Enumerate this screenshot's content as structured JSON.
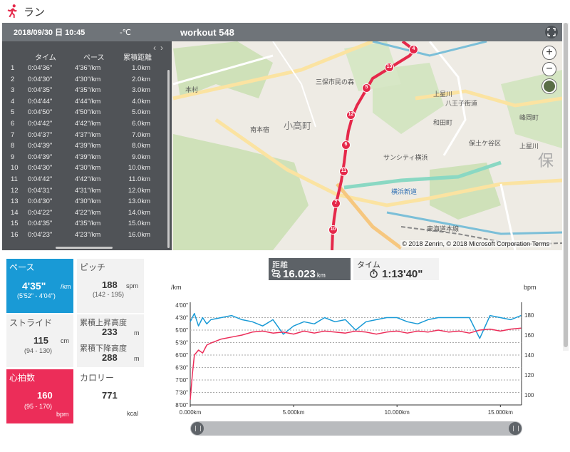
{
  "app": {
    "title": "ラン",
    "icon": "runner-icon"
  },
  "header": {
    "date": "2018/09/30 日 10:45",
    "temperature": "-℃",
    "workout_title": "workout 548",
    "expand_icon": "expand-icon"
  },
  "laps": {
    "columns": [
      "タイム",
      "ペース",
      "累積距離"
    ],
    "rows": [
      {
        "no": "1",
        "time": "0:04'36\"",
        "pace": "4'36\"/km",
        "dist": "1.0km"
      },
      {
        "no": "2",
        "time": "0:04'30\"",
        "pace": "4'30\"/km",
        "dist": "2.0km"
      },
      {
        "no": "3",
        "time": "0:04'35\"",
        "pace": "4'35\"/km",
        "dist": "3.0km"
      },
      {
        "no": "4",
        "time": "0:04'44\"",
        "pace": "4'44\"/km",
        "dist": "4.0km"
      },
      {
        "no": "5",
        "time": "0:04'50\"",
        "pace": "4'50\"/km",
        "dist": "5.0km"
      },
      {
        "no": "6",
        "time": "0:04'42\"",
        "pace": "4'42\"/km",
        "dist": "6.0km"
      },
      {
        "no": "7",
        "time": "0:04'37\"",
        "pace": "4'37\"/km",
        "dist": "7.0km"
      },
      {
        "no": "8",
        "time": "0:04'39\"",
        "pace": "4'39\"/km",
        "dist": "8.0km"
      },
      {
        "no": "9",
        "time": "0:04'39\"",
        "pace": "4'39\"/km",
        "dist": "9.0km"
      },
      {
        "no": "10",
        "time": "0:04'30\"",
        "pace": "4'30\"/km",
        "dist": "10.0km"
      },
      {
        "no": "11",
        "time": "0:04'42\"",
        "pace": "4'42\"/km",
        "dist": "11.0km"
      },
      {
        "no": "12",
        "time": "0:04'31\"",
        "pace": "4'31\"/km",
        "dist": "12.0km"
      },
      {
        "no": "13",
        "time": "0:04'30\"",
        "pace": "4'30\"/km",
        "dist": "13.0km"
      },
      {
        "no": "14",
        "time": "0:04'22\"",
        "pace": "4'22\"/km",
        "dist": "14.0km"
      },
      {
        "no": "15",
        "time": "0:04'35\"",
        "pace": "4'35\"/km",
        "dist": "15.0km"
      },
      {
        "no": "16",
        "time": "0:04'23\"",
        "pace": "4'23\"/km",
        "dist": "16.0km"
      }
    ]
  },
  "map": {
    "zoom_in": "+",
    "zoom_out": "−",
    "copyright": "© 2018 Zenrin, © 2018 Microsoft Corporation Terms",
    "labels": {
      "town1": "小高町",
      "town2": "上星川",
      "town3": "和田町",
      "town4": "峰岡町",
      "kamihoshikawa": "上星川",
      "hodogaya": "保",
      "hodogaya_ku": "保土ケ谷区",
      "minamihoncho": "南本宿",
      "honmura": "本村",
      "hachioji": "八王子街道",
      "yokohama_shindo": "横浜新道",
      "tokaido": "東海道本線",
      "sanshi": "サンシティ横浜",
      "michi": "三保市民の森"
    },
    "markers": [
      "4",
      "13",
      "5",
      "12",
      "6",
      "11",
      "7",
      "10"
    ]
  },
  "stats": {
    "pace": {
      "label": "ペース",
      "value": "4'35\"",
      "unit": "/km",
      "range": "(5'52\" - 4'04\")"
    },
    "pitch": {
      "label": "ピッチ",
      "value": "188",
      "unit": "spm",
      "range": "(142 - 195)"
    },
    "stride": {
      "label": "ストライド",
      "value": "115",
      "unit": "cm",
      "range": "(94 - 130)"
    },
    "ascent": {
      "label": "累積上昇高度",
      "value": "233",
      "unit": "m"
    },
    "descent": {
      "label": "累積下降高度",
      "value": "288",
      "unit": "m"
    },
    "heart": {
      "label": "心拍数",
      "value": "160",
      "unit": "bpm",
      "range": "(95 - 170)"
    },
    "calorie": {
      "label": "カロリー",
      "value": "771",
      "unit": "kcal"
    }
  },
  "summary": {
    "distance": {
      "label": "距離",
      "value": "16.023",
      "unit": "km",
      "icon": "route-icon"
    },
    "time": {
      "label": "タイム",
      "value": "1:13'40\"",
      "icon": "stopwatch-icon"
    }
  },
  "colors": {
    "pace": "#199ad6",
    "heart": "#ec2d59",
    "route": "#e5284a"
  },
  "chart_data": {
    "type": "line",
    "ylabel_left": "/km",
    "ylabel_right": "bpm",
    "xlim": [
      0,
      16.023
    ],
    "x_ticks": [
      "0.000km",
      "5.000km",
      "10.000km",
      "15.000km"
    ],
    "x_tick_values": [
      0,
      5,
      10,
      15
    ],
    "left_ticks": [
      "4'00\"",
      "4'30\"",
      "5'00\"",
      "5'30\"",
      "6'00\"",
      "6'30\"",
      "7'00\"",
      "7'30\"",
      "8'00\""
    ],
    "right_ticks": [
      "180",
      "160",
      "140",
      "120",
      "100"
    ],
    "left_ylim": [
      "4'00\"",
      "8'00\""
    ],
    "right_ylim": [
      90,
      190
    ],
    "grid": true,
    "series": [
      {
        "type": "pace",
        "color": "#199ad6",
        "x": [
          0,
          0.2,
          0.4,
          0.6,
          0.8,
          1.0,
          1.5,
          2.0,
          2.5,
          3.0,
          3.5,
          4.0,
          4.5,
          5.0,
          5.5,
          6.0,
          6.5,
          7.0,
          7.5,
          8.0,
          8.5,
          9.0,
          9.5,
          10.0,
          10.5,
          11.0,
          11.5,
          12.0,
          12.5,
          13.0,
          13.5,
          14.0,
          14.5,
          15.0,
          15.5,
          16.0
        ],
        "y": [
          "4'40\"",
          "4'20\"",
          "4'50\"",
          "4'30\"",
          "4'45\"",
          "4'35\"",
          "4'30\"",
          "4'25\"",
          "4'35\"",
          "4'40\"",
          "4'50\"",
          "4'35\"",
          "5'10\"",
          "4'50\"",
          "4'40\"",
          "4'45\"",
          "4'30\"",
          "4'40\"",
          "4'35\"",
          "5'00\"",
          "4'40\"",
          "4'35\"",
          "4'30\"",
          "4'30\"",
          "4'40\"",
          "4'45\"",
          "4'35\"",
          "4'30\"",
          "4'30\"",
          "4'30\"",
          "4'30\"",
          "5'20\"",
          "4'25\"",
          "4'30\"",
          "4'35\"",
          "4'25\""
        ]
      },
      {
        "type": "heart_rate",
        "color": "#ec2d59",
        "x": [
          0,
          0.1,
          0.2,
          0.4,
          0.6,
          0.8,
          1.0,
          1.5,
          2.0,
          2.5,
          3.0,
          3.5,
          4.0,
          4.5,
          5.0,
          5.5,
          6.0,
          6.5,
          7.0,
          7.5,
          8.0,
          8.5,
          9.0,
          9.5,
          10.0,
          10.5,
          11.0,
          11.5,
          12.0,
          12.5,
          13.0,
          13.5,
          14.0,
          14.5,
          15.0,
          15.5,
          16.0
        ],
        "y": [
          95,
          120,
          140,
          145,
          142,
          150,
          152,
          156,
          158,
          160,
          163,
          164,
          162,
          163,
          161,
          164,
          162,
          164,
          163,
          162,
          164,
          163,
          161,
          163,
          164,
          162,
          164,
          163,
          165,
          163,
          164,
          162,
          165,
          166,
          164,
          166,
          167
        ]
      }
    ]
  }
}
